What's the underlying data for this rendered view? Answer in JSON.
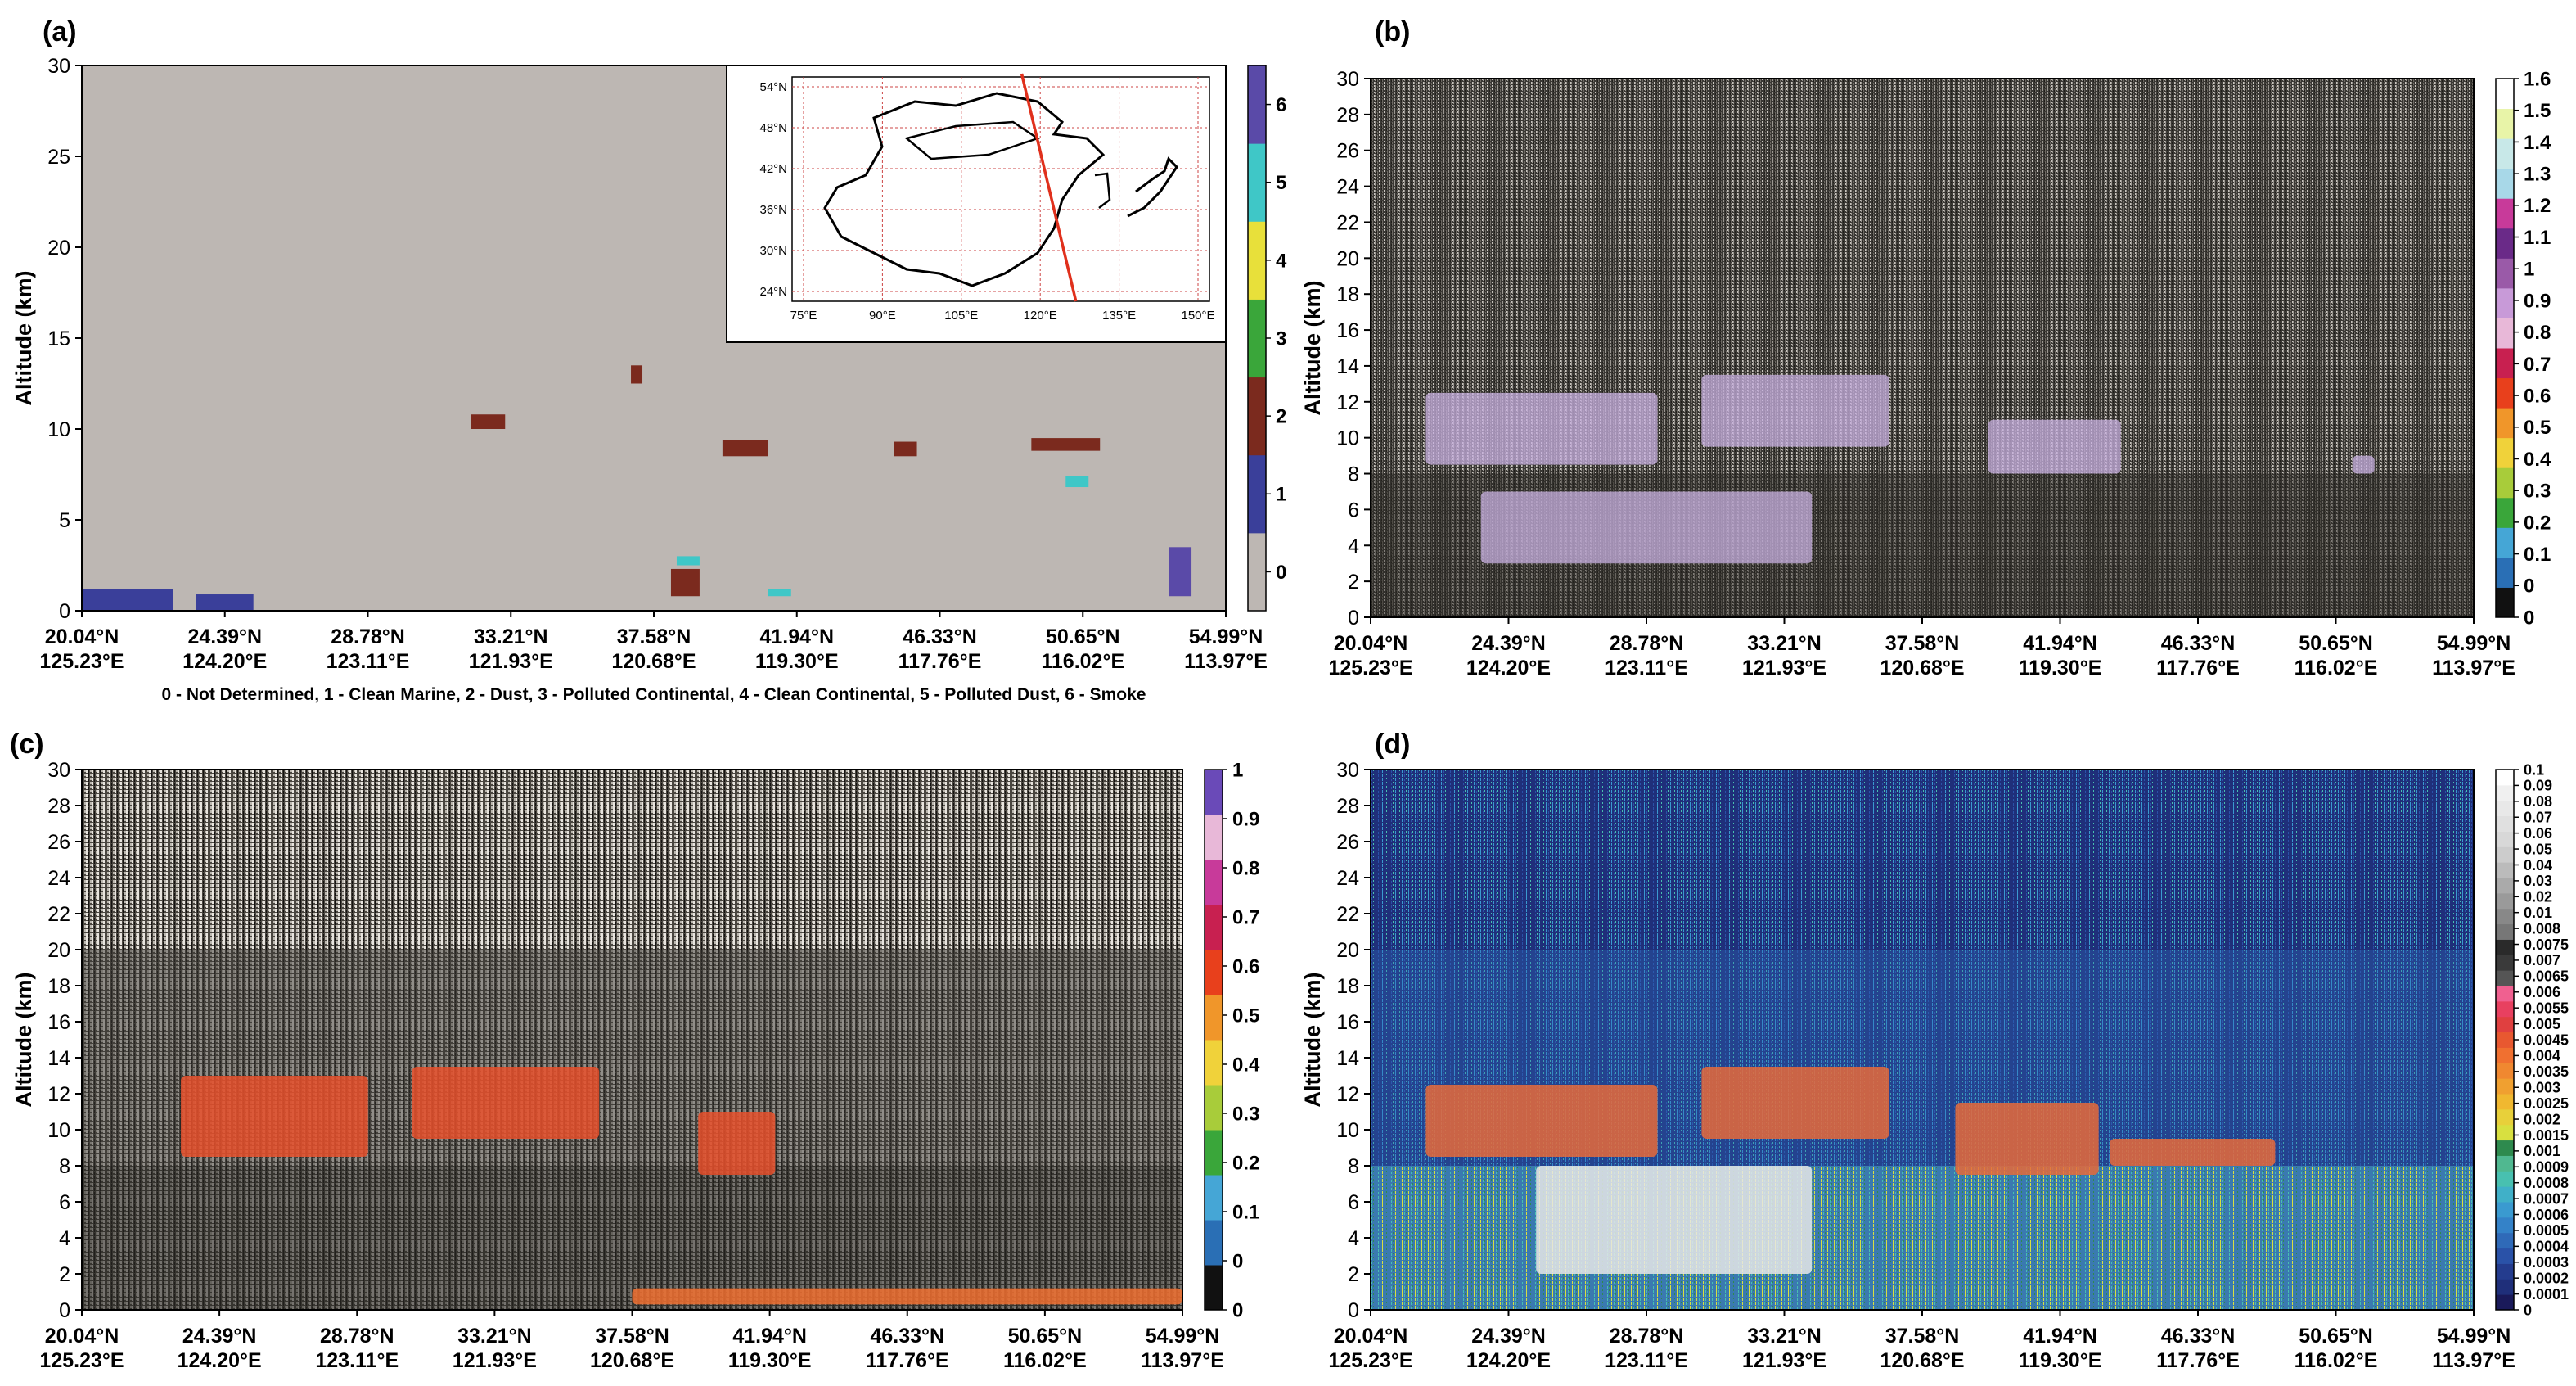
{
  "panels": [
    {
      "label": "(a)"
    },
    {
      "label": "(b)"
    },
    {
      "label": "(c)"
    },
    {
      "label": "(d)"
    }
  ],
  "colors": {
    "panel_a_bg": "#bdb7b3",
    "dust_cloud": "#7b2a1e",
    "clean_marine": "#4a4aa8",
    "polluted_dust": "#3fc7c7",
    "noise_dark": "#3b3935",
    "inset_track": "#e0301c",
    "d_background": "#1f2f7a"
  },
  "inset_map": {
    "lat_labels": [
      "54°N",
      "48°N",
      "42°N",
      "36°N",
      "30°N",
      "24°N"
    ],
    "lon_labels": [
      "75°E",
      "90°E",
      "105°E",
      "120°E",
      "135°E",
      "150°E"
    ]
  },
  "legend_a": "0 - Not Determined,      1 - Clean Marine,      2 - Dust,      3 - Polluted Continental,      4 - Clean Continental,      5 - Polluted Dust,      6 - Smoke",
  "chart_data": [
    {
      "type": "heatmap",
      "panel": "(a)",
      "title": "",
      "ylabel": "Altitude (km)",
      "ylim": [
        0,
        30
      ],
      "yticks": [
        0,
        5,
        10,
        15,
        20,
        25,
        30
      ],
      "xtick_lat": [
        "20.04°N",
        "24.39°N",
        "28.78°N",
        "33.21°N",
        "37.58°N",
        "41.94°N",
        "46.33°N",
        "50.65°N",
        "54.99°N"
      ],
      "xtick_lon": [
        "125.23°E",
        "124.20°E",
        "123.11°E",
        "121.93°E",
        "120.68°E",
        "119.30°E",
        "117.76°E",
        "116.02°E",
        "113.97°E"
      ],
      "colorbar_ticks": [
        "0",
        "1",
        "2",
        "3",
        "4",
        "5",
        "6"
      ],
      "colorbar_colors": [
        "#bdb7b3",
        "#3a3f9a",
        "#7b2a1e",
        "#3aa63a",
        "#e8e03a",
        "#3fc7c7",
        "#5a4aa8"
      ],
      "categories": [
        "0 - Not Determined",
        "1 - Clean Marine",
        "2 - Dust",
        "3 - Polluted Continental",
        "4 - Clean Continental",
        "5 - Polluted Dust",
        "6 - Smoke"
      ],
      "features": [
        {
          "type": 1,
          "x0": 0.0,
          "x1": 0.08,
          "alt0": 0.0,
          "alt1": 1.2
        },
        {
          "type": 1,
          "x0": 0.1,
          "x1": 0.15,
          "alt0": 0.0,
          "alt1": 0.9
        },
        {
          "type": 2,
          "x0": 0.34,
          "x1": 0.37,
          "alt0": 10.0,
          "alt1": 10.8
        },
        {
          "type": 2,
          "x0": 0.48,
          "x1": 0.49,
          "alt0": 12.5,
          "alt1": 13.5
        },
        {
          "type": 2,
          "x0": 0.515,
          "x1": 0.54,
          "alt0": 0.8,
          "alt1": 2.3
        },
        {
          "type": 2,
          "x0": 0.56,
          "x1": 0.6,
          "alt0": 8.5,
          "alt1": 9.4
        },
        {
          "type": 2,
          "x0": 0.71,
          "x1": 0.73,
          "alt0": 8.5,
          "alt1": 9.3
        },
        {
          "type": 2,
          "x0": 0.83,
          "x1": 0.89,
          "alt0": 8.8,
          "alt1": 9.5
        },
        {
          "type": 5,
          "x0": 0.52,
          "x1": 0.54,
          "alt0": 2.5,
          "alt1": 3.0
        },
        {
          "type": 5,
          "x0": 0.6,
          "x1": 0.62,
          "alt0": 0.8,
          "alt1": 1.2
        },
        {
          "type": 5,
          "x0": 0.86,
          "x1": 0.88,
          "alt0": 6.8,
          "alt1": 7.4
        },
        {
          "type": 6,
          "x0": 0.95,
          "x1": 0.97,
          "alt0": 0.8,
          "alt1": 3.5
        }
      ]
    },
    {
      "type": "heatmap",
      "panel": "(b)",
      "title": "",
      "ylabel": "Altitude (km)",
      "ylim": [
        0,
        30
      ],
      "yticks": [
        0,
        2,
        4,
        6,
        8,
        10,
        12,
        14,
        16,
        18,
        20,
        22,
        24,
        26,
        28,
        30
      ],
      "xtick_lat": [
        "20.04°N",
        "24.39°N",
        "28.78°N",
        "33.21°N",
        "37.58°N",
        "41.94°N",
        "46.33°N",
        "50.65°N",
        "54.99°N"
      ],
      "xtick_lon": [
        "125.23°E",
        "124.20°E",
        "123.11°E",
        "121.93°E",
        "120.68°E",
        "119.30°E",
        "117.76°E",
        "116.02°E",
        "113.97°E"
      ],
      "colorbar_ticks": [
        "0",
        "0",
        "0.1",
        "0.2",
        "0.3",
        "0.4",
        "0.5",
        "0.6",
        "0.7",
        "0.8",
        "0.9",
        "1",
        "1.1",
        "1.2",
        "1.3",
        "1.4",
        "1.5",
        "1.6"
      ],
      "colorbar_colors": [
        "#111111",
        "#2a6fb5",
        "#45a6d6",
        "#3aa63a",
        "#a8cc3a",
        "#f0d23a",
        "#f0962a",
        "#e8401c",
        "#c82050",
        "#e8b8d8",
        "#c89ad8",
        "#9a5aa8",
        "#6a2a88",
        "#c83a9a",
        "#a8d8e8",
        "#c8e8e8",
        "#e8f4a8",
        "#ffffff"
      ],
      "features": [
        {
          "x0": 0.05,
          "x1": 0.26,
          "alt0": 8.5,
          "alt1": 12.5
        },
        {
          "x0": 0.3,
          "x1": 0.47,
          "alt0": 9.5,
          "alt1": 13.5
        },
        {
          "x0": 0.56,
          "x1": 0.68,
          "alt0": 8.0,
          "alt1": 11.0
        },
        {
          "x0": 0.89,
          "x1": 0.91,
          "alt0": 8.0,
          "alt1": 9.0
        },
        {
          "x0": 0.1,
          "x1": 0.4,
          "alt0": 3.0,
          "alt1": 7.0
        }
      ]
    },
    {
      "type": "heatmap",
      "panel": "(c)",
      "title": "",
      "ylabel": "Altitude (km)",
      "ylim": [
        0,
        30
      ],
      "yticks": [
        0,
        2,
        4,
        6,
        8,
        10,
        12,
        14,
        16,
        18,
        20,
        22,
        24,
        26,
        28,
        30
      ],
      "xtick_lat": [
        "20.04°N",
        "24.39°N",
        "28.78°N",
        "33.21°N",
        "37.58°N",
        "41.94°N",
        "46.33°N",
        "50.65°N",
        "54.99°N"
      ],
      "xtick_lon": [
        "125.23°E",
        "124.20°E",
        "123.11°E",
        "121.93°E",
        "120.68°E",
        "119.30°E",
        "117.76°E",
        "116.02°E",
        "113.97°E"
      ],
      "colorbar_ticks": [
        "0",
        "0",
        "0.1",
        "0.2",
        "0.3",
        "0.4",
        "0.5",
        "0.6",
        "0.7",
        "0.8",
        "0.9",
        "1"
      ],
      "colorbar_colors": [
        "#111111",
        "#2a6fb5",
        "#45a6d6",
        "#3aa63a",
        "#a8cc3a",
        "#f0d23a",
        "#f0962a",
        "#e8401c",
        "#c82050",
        "#c83a9a",
        "#e8b8d8",
        "#6a4ab8"
      ],
      "features": [
        {
          "x0": 0.09,
          "x1": 0.26,
          "alt0": 8.5,
          "alt1": 13.0
        },
        {
          "x0": 0.3,
          "x1": 0.47,
          "alt0": 9.5,
          "alt1": 13.5
        },
        {
          "x0": 0.56,
          "x1": 0.63,
          "alt0": 7.5,
          "alt1": 11.0
        },
        {
          "x0": 0.5,
          "x1": 1.0,
          "alt0": 0.3,
          "alt1": 1.2
        }
      ]
    },
    {
      "type": "heatmap",
      "panel": "(d)",
      "title": "",
      "ylabel": "Altitude (km)",
      "ylim": [
        0,
        30
      ],
      "yticks": [
        0,
        2,
        4,
        6,
        8,
        10,
        12,
        14,
        16,
        18,
        20,
        22,
        24,
        26,
        28,
        30
      ],
      "xtick_lat": [
        "20.04°N",
        "24.39°N",
        "28.78°N",
        "33.21°N",
        "37.58°N",
        "41.94°N",
        "46.33°N",
        "50.65°N",
        "54.99°N"
      ],
      "xtick_lon": [
        "125.23°E",
        "124.20°E",
        "123.11°E",
        "121.93°E",
        "120.68°E",
        "119.30°E",
        "117.76°E",
        "116.02°E",
        "113.97°E"
      ],
      "colorbar_ticks": [
        "0",
        "0.0001",
        "0.0002",
        "0.0003",
        "0.0004",
        "0.0005",
        "0.0006",
        "0.0007",
        "0.0008",
        "0.0009",
        "0.001",
        "0.0015",
        "0.002",
        "0.0025",
        "0.003",
        "0.0035",
        "0.004",
        "0.0045",
        "0.005",
        "0.0055",
        "0.006",
        "0.0065",
        "0.007",
        "0.0075",
        "0.008",
        "0.01",
        "0.02",
        "0.03",
        "0.04",
        "0.05",
        "0.06",
        "0.07",
        "0.08",
        "0.09",
        "0.1"
      ],
      "colorbar_colors": [
        "#1a1a5a",
        "#1f2f7a",
        "#243c8e",
        "#2a52a8",
        "#2f6ab8",
        "#3482c8",
        "#3a9ad0",
        "#40b0c8",
        "#48c0b0",
        "#50b890",
        "#2e8a4e",
        "#d8e040",
        "#e8d03a",
        "#f0b830",
        "#f0a030",
        "#f08830",
        "#f07030",
        "#e85830",
        "#e04040",
        "#e84060",
        "#f06090",
        "#555555",
        "#3a3a3a",
        "#2a2a2a",
        "#777777",
        "#888888",
        "#9a9a9a",
        "#aaaaaa",
        "#bbbbbb",
        "#cccccc",
        "#d8d8d8",
        "#e0e0e0",
        "#e8e8e8",
        "#f0f0f0",
        "#ffffff"
      ],
      "features": [
        {
          "x0": 0.05,
          "x1": 0.26,
          "alt0": 8.5,
          "alt1": 12.5
        },
        {
          "x0": 0.3,
          "x1": 0.47,
          "alt0": 9.5,
          "alt1": 13.5
        },
        {
          "x0": 0.53,
          "x1": 0.66,
          "alt0": 7.5,
          "alt1": 11.5
        },
        {
          "x0": 0.67,
          "x1": 0.82,
          "alt0": 8.0,
          "alt1": 9.5
        },
        {
          "x0": 0.15,
          "x1": 0.4,
          "alt0": 2.0,
          "alt1": 8.0
        }
      ]
    }
  ]
}
